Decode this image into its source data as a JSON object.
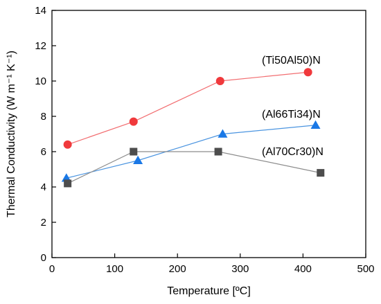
{
  "chart_data": {
    "type": "scatter",
    "xlabel": "Temperature [ºC]",
    "ylabel": "Thermal Conductivity (W m⁻¹ K⁻¹)",
    "xlim": [
      0,
      500
    ],
    "ylim": [
      0,
      14
    ],
    "xticks": [
      0,
      100,
      200,
      300,
      400,
      500
    ],
    "yticks": [
      0,
      2,
      4,
      6,
      8,
      10,
      12,
      14
    ],
    "grid": false,
    "series": [
      {
        "name": "(Ti50Al50)N",
        "marker": "circle",
        "color": "#f0393c",
        "line_color": "#f26d70",
        "x": [
          25,
          130,
          268,
          408
        ],
        "y": [
          6.4,
          7.7,
          10.0,
          10.5
        ]
      },
      {
        "name": "(Al66Ti34)N",
        "marker": "triangle",
        "color": "#1a78e6",
        "line_color": "#4a94e0",
        "x": [
          23,
          137,
          272,
          420
        ],
        "y": [
          4.5,
          5.5,
          7.0,
          7.5
        ]
      },
      {
        "name": "(Al70Cr30)N",
        "marker": "square",
        "color": "#4d4d4d",
        "line_color": "#8c8c8c",
        "x": [
          25,
          130,
          265,
          428
        ],
        "y": [
          4.2,
          6.0,
          6.0,
          4.8
        ]
      }
    ]
  }
}
